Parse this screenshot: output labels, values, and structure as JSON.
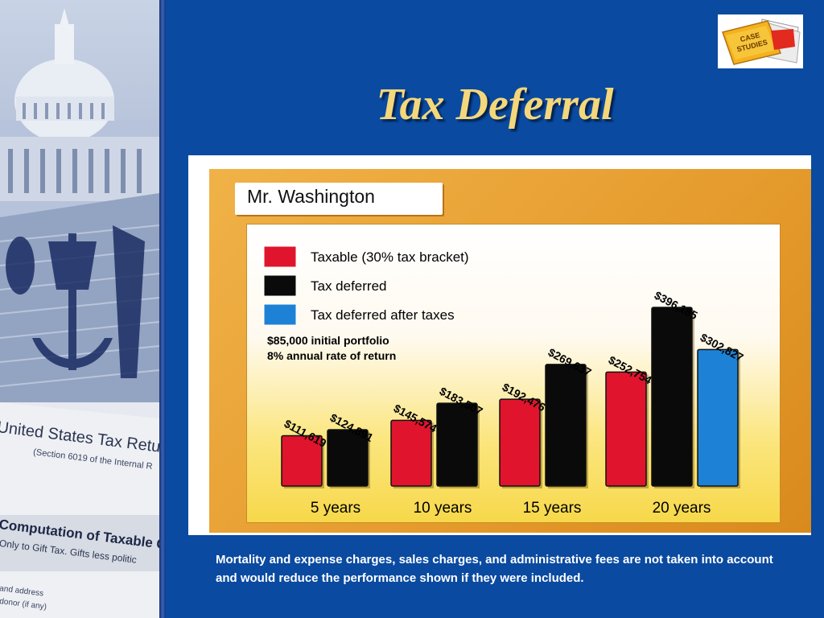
{
  "slide": {
    "title": "Tax Deferral",
    "footnote": "Mortality and expense charges, sales charges, and administrative fees are not taken into account and would reduce the performance shown if they were included.",
    "logo_text_line1": "CASE",
    "logo_text_line2": "STUDIES",
    "background_text_1": "United States Tax Return",
    "background_text_2": "(Section 6019 of the Internal R",
    "background_text_3": "Computation of Taxable Gi",
    "background_text_4": "Only to Gift Tax. Gifts less politic",
    "background_text_5": "and address",
    "background_text_6": "donor (if any)",
    "colors": {
      "background": "#0a4aa0",
      "title": "#f4d77a",
      "frame": "#e8a238"
    }
  },
  "chart_data": {
    "type": "bar",
    "title": "Mr. Washington",
    "categories": [
      "5 years",
      "10 years",
      "15 years",
      "20 years"
    ],
    "series": [
      {
        "name": "Taxable (30% tax bracket)",
        "color": "#e0152d",
        "values": [
          111619,
          145574,
          192476,
          252754
        ]
      },
      {
        "name": "Tax deferred",
        "color": "#0a0a0a",
        "values": [
          124891,
          183507,
          269637,
          396185
        ]
      },
      {
        "name": "Tax deferred after taxes",
        "color": "#1d82d6",
        "values": [
          null,
          null,
          null,
          302827
        ]
      }
    ],
    "data_labels": [
      [
        "$111,619",
        "$124,891",
        null
      ],
      [
        "$145,574",
        "$183,507",
        null
      ],
      [
        "$192,476",
        "$269,637",
        null
      ],
      [
        "$252,754",
        "$396,185",
        "$302,827"
      ]
    ],
    "annotation": [
      "$85,000 initial portfolio",
      "8% annual rate of return"
    ],
    "ylim": [
      0,
      420000
    ],
    "legend_position": "top-left",
    "grid": false
  }
}
